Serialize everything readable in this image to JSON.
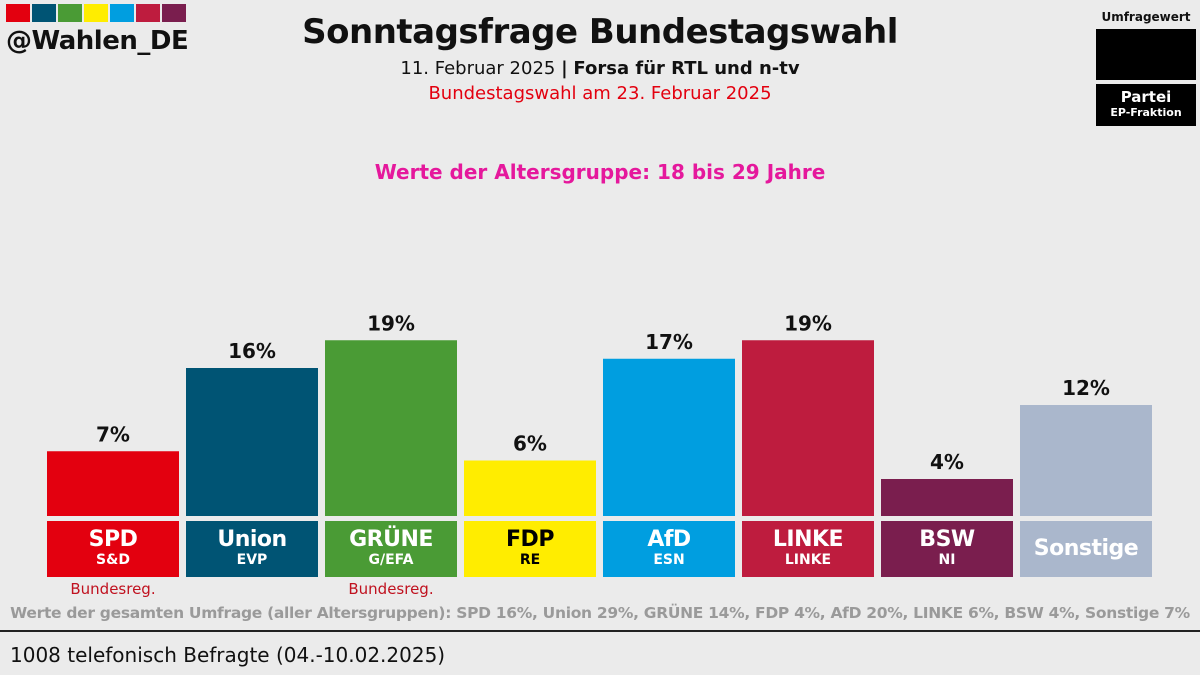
{
  "header": {
    "handle": "@Wahlen_DE",
    "logo_colors": [
      "#e3000f",
      "#005474",
      "#4a9b35",
      "#ffed00",
      "#009ee0",
      "#be1c3e",
      "#7a1e4e"
    ],
    "title": "Sonntagsfrage Bundestagswahl",
    "date": "11. Februar 2025",
    "separator": "|",
    "source": "Forsa für RTL und n-tv",
    "election_note": "Bundestagswahl am 23. Februar 2025"
  },
  "legend": {
    "value_label": "Umfragewert",
    "party_label": "Partei",
    "faction_label": "EP-Fraktion"
  },
  "age_group": "Werte der Altersgruppe: 18 bis 29 Jahre",
  "chart_data": {
    "type": "bar",
    "categories": [
      "SPD",
      "Union",
      "GRÜNE",
      "FDP",
      "AfD",
      "LINKE",
      "BSW",
      "Sonstige"
    ],
    "values": [
      7,
      16,
      19,
      6,
      17,
      19,
      4,
      12
    ],
    "value_labels": [
      "7%",
      "16%",
      "19%",
      "6%",
      "17%",
      "19%",
      "4%",
      "12%"
    ],
    "factions": [
      "S&D",
      "EVP",
      "G/EFA",
      "RE",
      "ESN",
      "LINKE",
      "NI",
      ""
    ],
    "colors": [
      "#e3000f",
      "#005474",
      "#4a9b35",
      "#ffed00",
      "#009ee0",
      "#be1c3e",
      "#7a1e4e",
      "#aab7cc"
    ],
    "label_text_colors": [
      "#ffffff",
      "#ffffff",
      "#ffffff",
      "#000000",
      "#ffffff",
      "#ffffff",
      "#ffffff",
      "#ffffff"
    ],
    "government": [
      "Bundesreg.",
      "",
      "Bundesreg.",
      "",
      "",
      "",
      "",
      ""
    ],
    "ylim": [
      0,
      19
    ]
  },
  "overall_results": "Werte der gesamten Umfrage (aller Altersgruppen): SPD 16%, Union 29%, GRÜNE 14%, FDP 4%, AfD 20%, LINKE 6%, BSW 4%, Sonstige 7%",
  "footer": "1008 telefonisch Befragte (04.-10.02.2025)"
}
